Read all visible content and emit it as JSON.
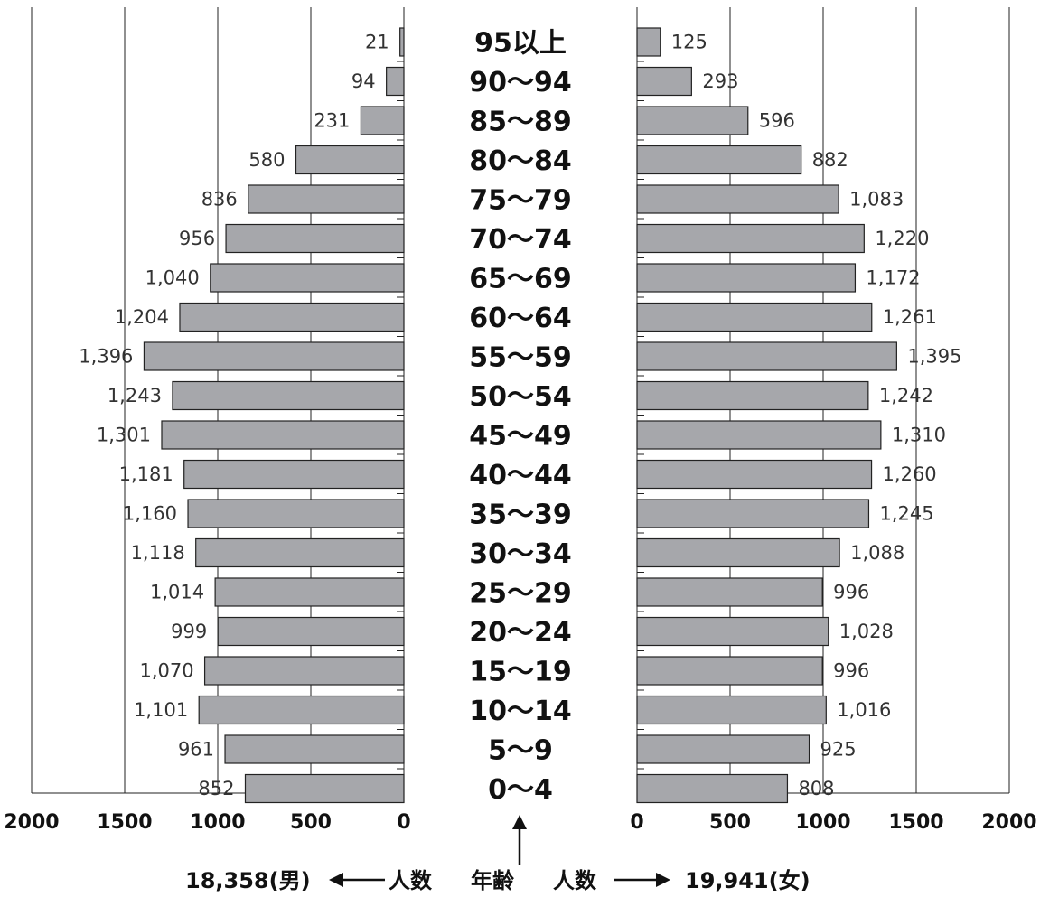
{
  "chart_data": {
    "type": "bar",
    "orientation": "horizontal-pyramid",
    "categories": [
      "95以上",
      "90〜94",
      "85〜89",
      "80〜84",
      "75〜79",
      "70〜74",
      "65〜69",
      "60〜64",
      "55〜59",
      "50〜54",
      "45〜49",
      "40〜44",
      "35〜39",
      "30〜34",
      "25〜29",
      "20〜24",
      "15〜19",
      "10〜14",
      "5〜9",
      "0〜4"
    ],
    "series": [
      {
        "name": "男",
        "side": "left",
        "values": [
          21,
          94,
          231,
          580,
          836,
          956,
          1040,
          1204,
          1396,
          1243,
          1301,
          1181,
          1160,
          1118,
          1014,
          999,
          1070,
          1101,
          961,
          852
        ],
        "labels": [
          "21",
          "94",
          "231",
          "580",
          "836",
          "956",
          "1,040",
          "1,204",
          "1,396",
          "1,243",
          "1,301",
          "1,181",
          "1,160",
          "1,118",
          "1,014",
          "999",
          "1,070",
          "1,101",
          "961",
          "852"
        ]
      },
      {
        "name": "女",
        "side": "right",
        "values": [
          125,
          293,
          596,
          882,
          1083,
          1220,
          1172,
          1261,
          1395,
          1242,
          1310,
          1260,
          1245,
          1088,
          996,
          1028,
          996,
          1016,
          925,
          808
        ],
        "labels": [
          "125",
          "293",
          "596",
          "882",
          "1,083",
          "1,220",
          "1,172",
          "1,261",
          "1,395",
          "1,242",
          "1,310",
          "1,260",
          "1,245",
          "1,088",
          "996",
          "1,028",
          "996",
          "1,016",
          "925",
          "808"
        ]
      }
    ],
    "xlim": [
      0,
      2000
    ],
    "left_ticks": [
      "2000",
      "1500",
      "1000",
      "500",
      "0"
    ],
    "right_ticks": [
      "0",
      "500",
      "1000",
      "1500",
      "2000"
    ],
    "grid": true
  },
  "footer": {
    "male_total": "18,358(男)",
    "left_axis_label": "人数",
    "center_label": "年齢",
    "right_axis_label": "人数",
    "female_total": "19,941(女)"
  },
  "colors": {
    "bar": "#a6a7ab",
    "stroke": "#222222"
  }
}
